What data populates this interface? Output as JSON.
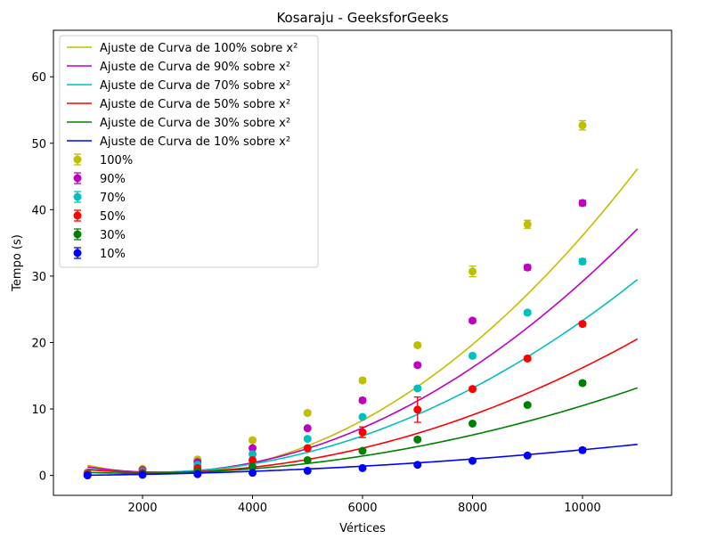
{
  "chart_data": {
    "type": "scatter",
    "title": "Kosaraju - GeeksforGeeks",
    "xlabel": "Vértices",
    "ylabel": "Tempo (s)",
    "xlim": [
      380,
      11620
    ],
    "ylim": [
      -3.0,
      67.0
    ],
    "xticks": [
      2000,
      4000,
      6000,
      8000,
      10000
    ],
    "yticks": [
      0,
      10,
      20,
      30,
      40,
      50,
      60
    ],
    "grid": false,
    "legend_position": "upper left",
    "fit_x_range": [
      1000,
      11000
    ],
    "series": [
      {
        "name": "100%",
        "fit_label": "Ajuste de Curva de 100% sobre x²",
        "color": "#bfbf00",
        "x": [
          1000,
          2000,
          3000,
          4000,
          5000,
          6000,
          7000,
          8000,
          9000,
          10000
        ],
        "y": [
          0.4,
          1.0,
          2.4,
          5.3,
          9.4,
          14.3,
          19.6,
          30.7,
          37.8,
          52.7
        ],
        "err": [
          0.2,
          0.2,
          0.3,
          0.3,
          0.3,
          0.3,
          0.3,
          0.8,
          0.6,
          0.7
        ],
        "fit": [
          6.22e-07,
          -0.003,
          3.9
        ]
      },
      {
        "name": "90%",
        "fit_label": "Ajuste de Curva de 90% sobre x²",
        "color": "#bf00bf",
        "x": [
          1000,
          2000,
          3000,
          4000,
          5000,
          6000,
          7000,
          8000,
          9000,
          10000
        ],
        "y": [
          0.4,
          0.8,
          2.0,
          4.1,
          7.1,
          11.3,
          16.6,
          23.3,
          31.3,
          41.0
        ],
        "err": [
          0.1,
          0.1,
          0.2,
          0.2,
          0.2,
          0.3,
          0.3,
          0.3,
          0.4,
          0.4
        ],
        "fit": [
          4.82e-07,
          -0.0022,
          3.0
        ]
      },
      {
        "name": "70%",
        "fit_label": "Ajuste de Curva de 70% sobre x²",
        "color": "#00bfbf",
        "x": [
          1000,
          2000,
          3000,
          4000,
          5000,
          6000,
          7000,
          8000,
          9000,
          10000
        ],
        "y": [
          0.3,
          0.6,
          1.6,
          3.2,
          5.5,
          8.8,
          13.1,
          18.0,
          24.5,
          32.2
        ],
        "err": [
          0.1,
          0.1,
          0.1,
          0.2,
          0.2,
          0.2,
          0.3,
          0.3,
          0.3,
          0.4
        ],
        "fit": [
          3.71e-07,
          -0.0016,
          2.2
        ]
      },
      {
        "name": "50%",
        "fit_label": "Ajuste de Curva de 50% sobre x²",
        "color": "#ff0000",
        "x": [
          1000,
          2000,
          3000,
          4000,
          5000,
          6000,
          7000,
          8000,
          9000,
          10000
        ],
        "y": [
          0.2,
          0.4,
          1.1,
          2.3,
          4.1,
          6.5,
          9.9,
          13.0,
          17.6,
          22.8
        ],
        "err": [
          0.1,
          0.1,
          0.1,
          0.2,
          0.2,
          0.8,
          1.9,
          0.3,
          0.3,
          0.3
        ],
        "fit": [
          2.64e-07,
          -0.0012,
          1.8
        ]
      },
      {
        "name": "30%",
        "fit_label": "Ajuste de Curva de 30% sobre x²",
        "color": "#008000",
        "x": [
          1000,
          2000,
          3000,
          4000,
          5000,
          6000,
          7000,
          8000,
          9000,
          10000
        ],
        "y": [
          0.1,
          0.2,
          0.6,
          1.3,
          2.3,
          3.7,
          5.4,
          7.8,
          10.6,
          13.9
        ],
        "err": [
          0.05,
          0.05,
          0.1,
          0.1,
          0.1,
          0.1,
          0.2,
          0.2,
          0.2,
          0.3
        ],
        "fit": [
          1.56e-07,
          -0.0006,
          0.9
        ]
      },
      {
        "name": "10%",
        "fit_label": "Ajuste de Curva de 10% sobre x²",
        "color": "#0000ff",
        "x": [
          1000,
          2000,
          3000,
          4000,
          5000,
          6000,
          7000,
          8000,
          9000,
          10000
        ],
        "y": [
          0.0,
          0.1,
          0.2,
          0.4,
          0.7,
          1.1,
          1.6,
          2.2,
          3.0,
          3.8
        ],
        "err": [
          0.05,
          0.05,
          0.05,
          0.05,
          0.05,
          0.1,
          0.1,
          0.1,
          0.2,
          0.3
        ],
        "fit": [
          3.86e-08,
          0.0,
          -0.0
        ]
      }
    ]
  }
}
